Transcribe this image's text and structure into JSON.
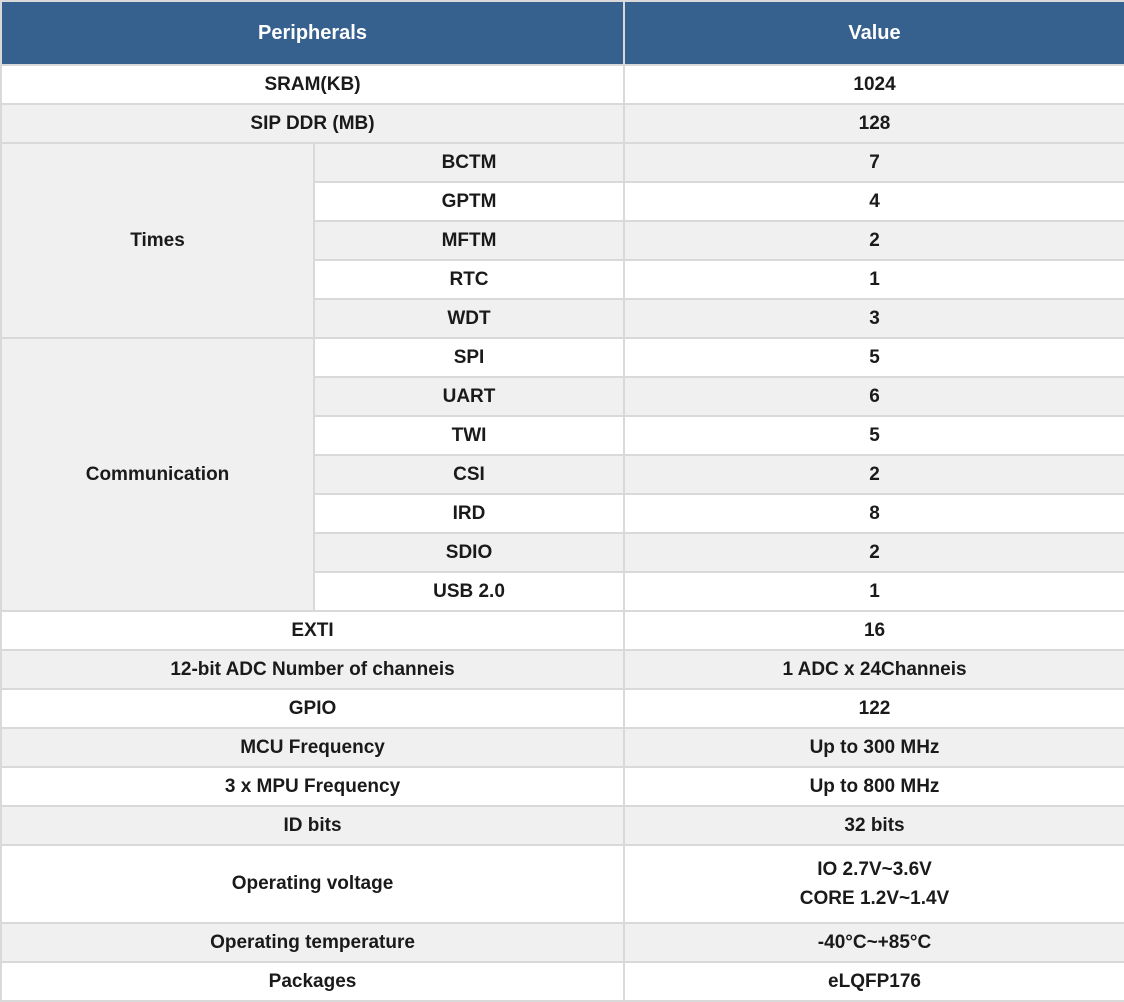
{
  "header": {
    "peripherals": "Peripherals",
    "value": "Value"
  },
  "top_rows": [
    {
      "label": "SRAM(KB)",
      "value": "1024"
    },
    {
      "label": "SIP DDR (MB)",
      "value": "128"
    }
  ],
  "groups": [
    {
      "label": "Times",
      "items": [
        {
          "label": "BCTM",
          "value": "7"
        },
        {
          "label": "GPTM",
          "value": "4"
        },
        {
          "label": "MFTM",
          "value": "2"
        },
        {
          "label": "RTC",
          "value": "1"
        },
        {
          "label": "WDT",
          "value": "3"
        }
      ]
    },
    {
      "label": "Communication",
      "items": [
        {
          "label": "SPI",
          "value": "5"
        },
        {
          "label": "UART",
          "value": "6"
        },
        {
          "label": "TWI",
          "value": "5"
        },
        {
          "label": "CSI",
          "value": "2"
        },
        {
          "label": "IRD",
          "value": "8"
        },
        {
          "label": "SDIO",
          "value": "2"
        },
        {
          "label": "USB 2.0",
          "value": "1"
        }
      ]
    }
  ],
  "bottom_rows": [
    {
      "label": "EXTI",
      "value": "16"
    },
    {
      "label": "12-bit ADC Number of channeis",
      "value": "1 ADC x 24Channeis"
    },
    {
      "label": "GPIO",
      "value": "122"
    },
    {
      "label": "MCU Frequency",
      "value": "Up to 300 MHz"
    },
    {
      "label": "3 x MPU Frequency",
      "value": "Up to 800 MHz"
    },
    {
      "label": "ID bits",
      "value": "32 bits"
    },
    {
      "label": "Operating voltage",
      "lines": [
        "IO 2.7V~3.6V",
        "CORE 1.2V~1.4V"
      ]
    },
    {
      "label": "Operating temperature",
      "value": "-40°C~+85°C"
    },
    {
      "label": "Packages",
      "value": "eLQFP176"
    }
  ],
  "colors": {
    "header_bg": "#36618F",
    "header_text": "#FFFFFF",
    "stripe_bg": "#F0F0F0",
    "border_color": "#D9D9D9",
    "text_color": "#1A1A1A"
  }
}
